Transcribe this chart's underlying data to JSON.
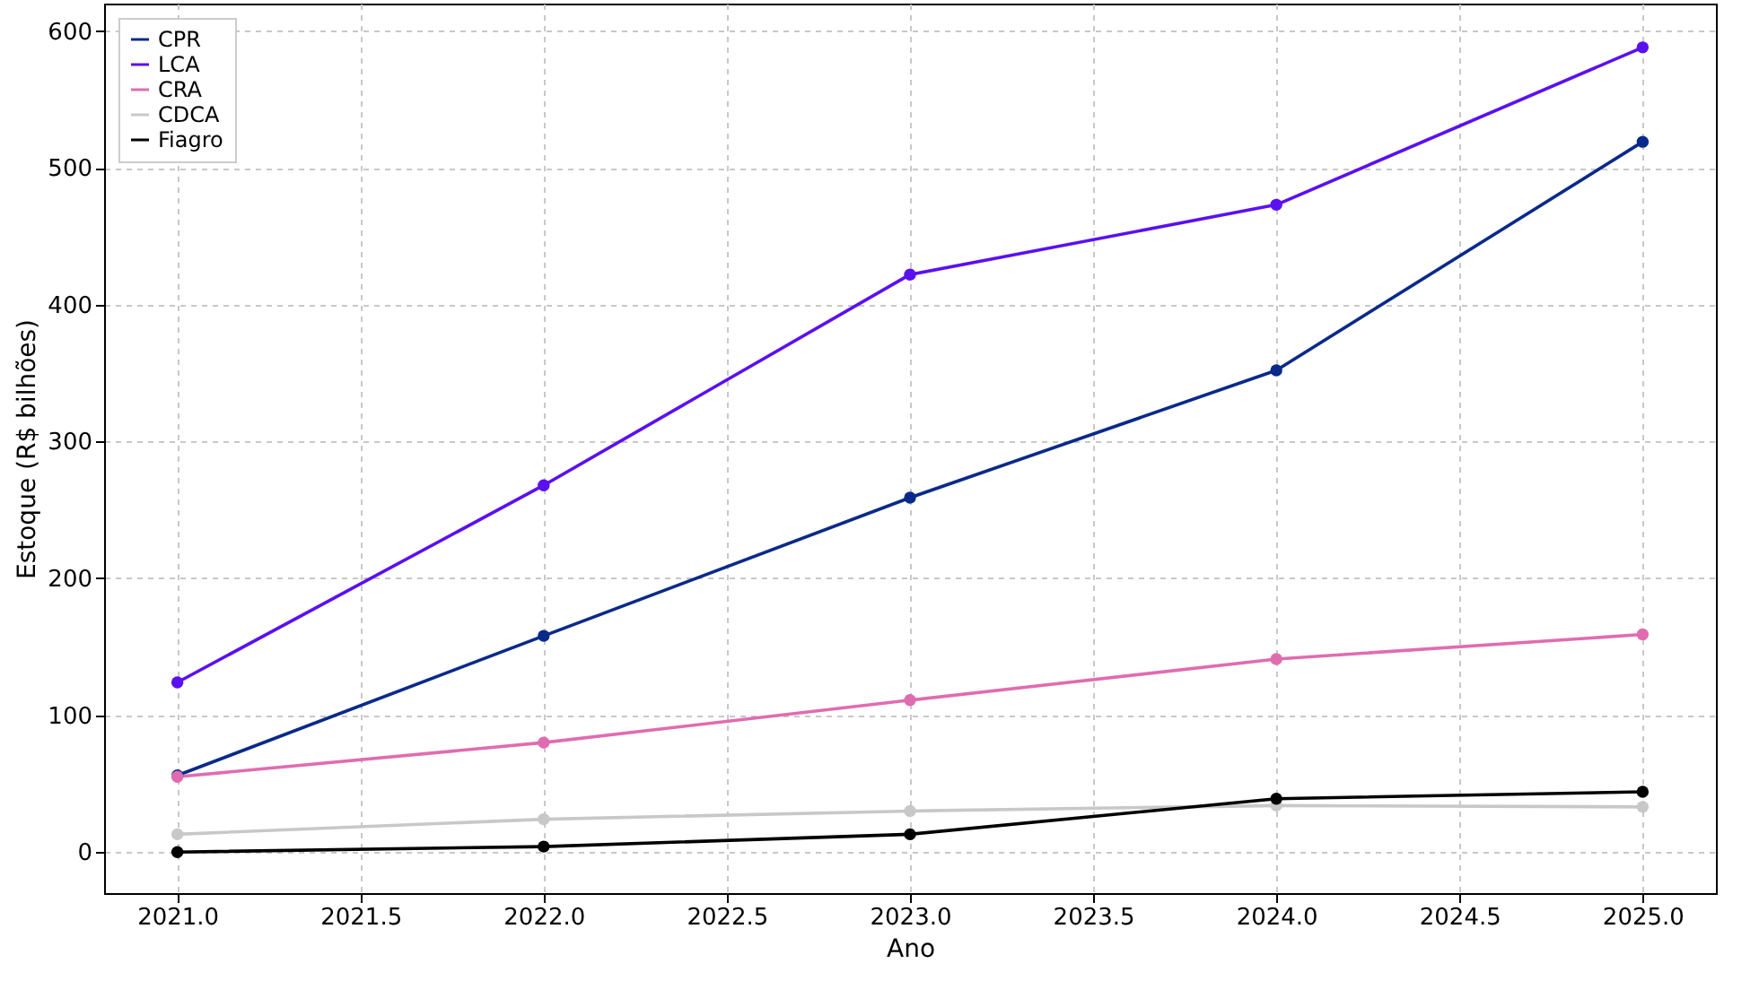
{
  "chart_data": {
    "type": "line",
    "xlabel": "Ano",
    "ylabel": "Estoque (R$ bilhões)",
    "x": [
      2021,
      2022,
      2023,
      2024,
      2025
    ],
    "xlim": [
      2020.8,
      2025.2
    ],
    "ylim": [
      -30,
      620
    ],
    "xticks": [
      {
        "value": 2021,
        "label": "2021.0"
      },
      {
        "value": 2021.5,
        "label": "2021.5"
      },
      {
        "value": 2022,
        "label": "2022.0"
      },
      {
        "value": 2022.5,
        "label": "2022.5"
      },
      {
        "value": 2023,
        "label": "2023.0"
      },
      {
        "value": 2023.5,
        "label": "2023.5"
      },
      {
        "value": 2024,
        "label": "2024.0"
      },
      {
        "value": 2024.5,
        "label": "2024.5"
      },
      {
        "value": 2025,
        "label": "2025.0"
      }
    ],
    "yticks": [
      0,
      100,
      200,
      300,
      400,
      500,
      600
    ],
    "grid": true,
    "legend": "top left",
    "marker": "circle",
    "line_style": "solid",
    "series": [
      {
        "name": "CPR",
        "color": "#0a2a8a",
        "values": [
          56,
          158,
          259,
          352,
          519
        ]
      },
      {
        "name": "LCA",
        "color": "#5b10f0",
        "values": [
          124,
          268,
          422,
          473,
          588
        ]
      },
      {
        "name": "CRA",
        "color": "#e06cb0",
        "values": [
          55,
          80,
          111,
          141,
          159
        ]
      },
      {
        "name": "CDCA",
        "color": "#c8c8c8",
        "values": [
          13,
          24,
          30,
          34,
          33
        ]
      },
      {
        "name": "Fiagro",
        "color": "#000000",
        "values": [
          0,
          4,
          13,
          39,
          44
        ]
      }
    ]
  }
}
